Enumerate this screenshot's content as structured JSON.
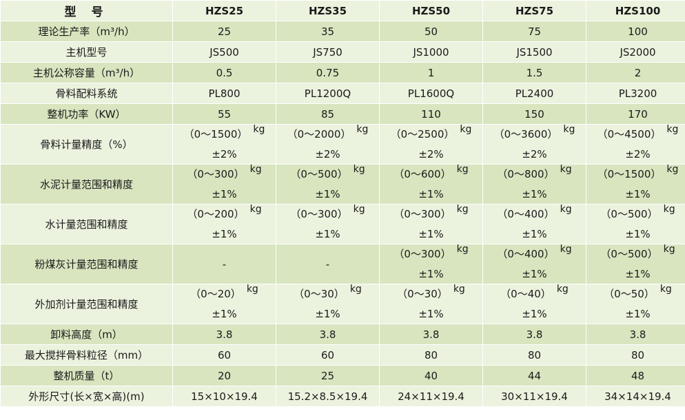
{
  "table": {
    "header": {
      "label": "型 号",
      "models": [
        "HZS25",
        "HZS35",
        "HZS50",
        "HZS75",
        "HZS100"
      ]
    },
    "rows": [
      {
        "label": "理论生产率（m³/h）",
        "values": [
          "25",
          "35",
          "50",
          "75",
          "100"
        ]
      },
      {
        "label": "主机型号",
        "values": [
          "JS500",
          "JS750",
          "JS1000",
          "JS1500",
          "JS2000"
        ]
      },
      {
        "label": "主机公称容量（m³/h）",
        "values": [
          "0.5",
          "0.75",
          "1",
          "1.5",
          "2"
        ]
      },
      {
        "label": "骨料配料系统",
        "values": [
          "PL800",
          "PL1200Q",
          "PL1600Q",
          "PL2400",
          "PL3200"
        ]
      },
      {
        "label": "整机功率（KW）",
        "values": [
          "55",
          "85",
          "110",
          "150",
          "170"
        ]
      },
      {
        "label": "骨料计量精度（%）",
        "ranges": [
          "（0～1500）",
          "（0～2000）",
          "（0～2500）",
          "（0～3600）",
          "（0～4500）"
        ],
        "unit": "kg",
        "precision": "±2%"
      },
      {
        "label": "水泥计量范围和精度",
        "ranges": [
          "（0～300）",
          "（0～500）",
          "（0～600）",
          "（0～800）",
          "（0～1500）"
        ],
        "unit": "kg",
        "precision": "±1%"
      },
      {
        "label": "水计量范围和精度",
        "ranges": [
          "（0～200）",
          "（0～300）",
          "（0～300）",
          "（0～400）",
          "（0～500）"
        ],
        "unit": "kg",
        "precision": "±1%"
      },
      {
        "label": "粉煤灰计量范围和精度",
        "dash": "-",
        "ranges": [
          "",
          "",
          "（0～300）",
          "（0～400）",
          "（0～500）"
        ],
        "unit": "kg",
        "precision": "±1%"
      },
      {
        "label": "外加剂计量范围和精度",
        "ranges": [
          "（0～20）",
          "（0～30）",
          "（0～30）",
          "（0～40）",
          "（0～50）"
        ],
        "unit": "kg",
        "precision": "±1%"
      },
      {
        "label": "卸料高度（m）",
        "values": [
          "3.8",
          "3.8",
          "3.8",
          "3.8",
          "3.8"
        ]
      },
      {
        "label": "最大搅拌骨料粒径（mm）",
        "values": [
          "60",
          "60",
          "80",
          "80",
          "80"
        ]
      },
      {
        "label": "整机质量（t）",
        "values": [
          "20",
          "25",
          "40",
          "44",
          "48"
        ]
      },
      {
        "label": "外形尺寸(长×宽×高)(m)",
        "values": [
          "15×10×19.4",
          "15.2×8.5×19.4",
          "24×11×19.4",
          "30×11×19.4",
          "34×14×19.4"
        ]
      }
    ]
  },
  "colors": {
    "row_light": "#ebf2de",
    "row_dark": "#d8e5bf",
    "border": "#ffffff"
  }
}
